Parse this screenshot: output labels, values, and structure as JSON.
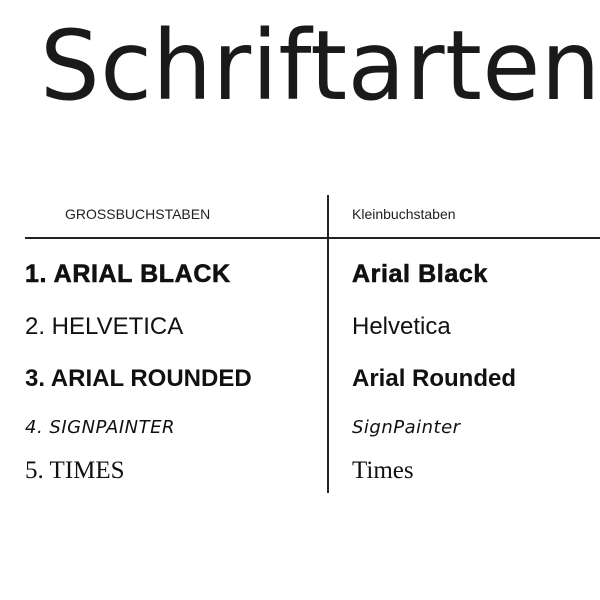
{
  "title": "Schriftarten",
  "headers": {
    "upper": "GROSSBUCHSTABEN",
    "lower": "Kleinbuchstaben"
  },
  "rows": [
    {
      "upper": "1. ARIAL BLACK",
      "lower": "Arial Black"
    },
    {
      "upper": "2.  HELVETICA",
      "lower": "Helvetica"
    },
    {
      "upper": "3.  ARIAL ROUNDED",
      "lower": "Arial Rounded"
    },
    {
      "upper": "4.  SIGNPAINTER",
      "lower": "SignPainter"
    },
    {
      "upper": "5.   TIMES",
      "lower": "Times"
    }
  ]
}
